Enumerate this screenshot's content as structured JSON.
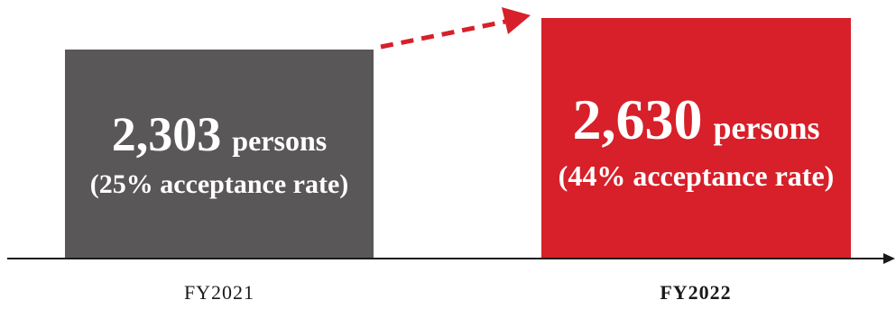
{
  "chart_data": {
    "type": "bar",
    "categories": [
      "FY2021",
      "FY2022"
    ],
    "values": [
      2303,
      2630
    ],
    "value_labels": [
      "2,303",
      "2,630"
    ],
    "unit_label": "persons",
    "acceptance_rates": [
      25,
      44
    ],
    "acceptance_labels": [
      "(25% acceptance rate)",
      "(44% acceptance rate)"
    ],
    "bar_colors": [
      "#595757",
      "#d7202a"
    ],
    "highlighted_category": "FY2022",
    "trend_arrow": "increase",
    "arrow_color": "#d7202a",
    "axis_color": "#1a1a1a",
    "grid": false,
    "legend": "none",
    "title": "",
    "xlabel": "",
    "ylabel": ""
  }
}
